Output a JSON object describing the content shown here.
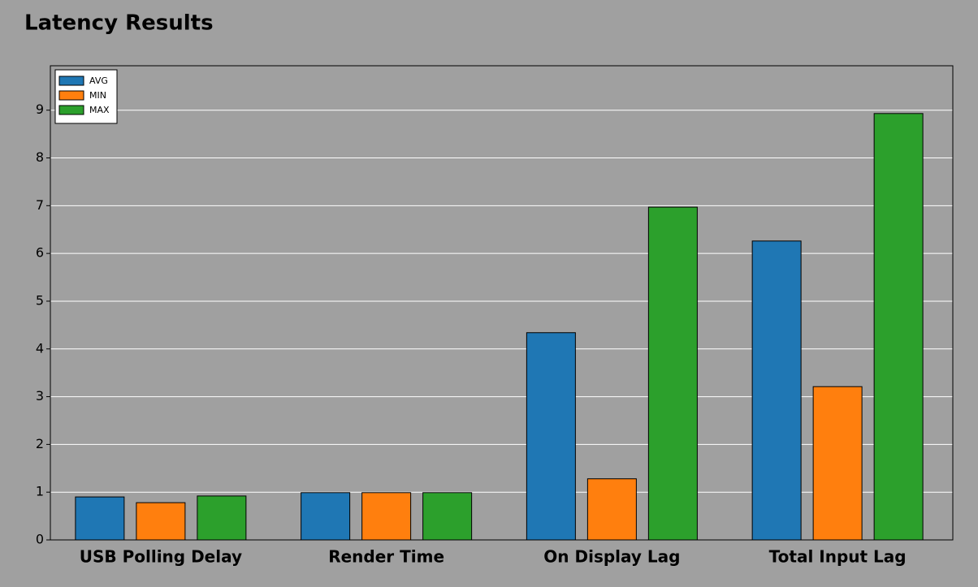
{
  "chart_data": {
    "type": "bar",
    "title": "Latency Results",
    "categories": [
      "USB Polling Delay",
      "Render Time",
      "On Display Lag",
      "Total Input Lag"
    ],
    "series": [
      {
        "name": "AVG",
        "color": "#1f77b4",
        "values": [
          0.9,
          0.99,
          4.34,
          6.26
        ]
      },
      {
        "name": "MIN",
        "color": "#ff7f0e",
        "values": [
          0.78,
          0.99,
          1.28,
          3.21
        ]
      },
      {
        "name": "MAX",
        "color": "#2ca02c",
        "values": [
          0.92,
          0.99,
          6.97,
          8.93
        ]
      }
    ],
    "ylim": [
      0,
      9.93
    ],
    "yticks": [
      0,
      1,
      2,
      3,
      4,
      5,
      6,
      7,
      8,
      9
    ],
    "grid": true,
    "legend": "upper left"
  }
}
